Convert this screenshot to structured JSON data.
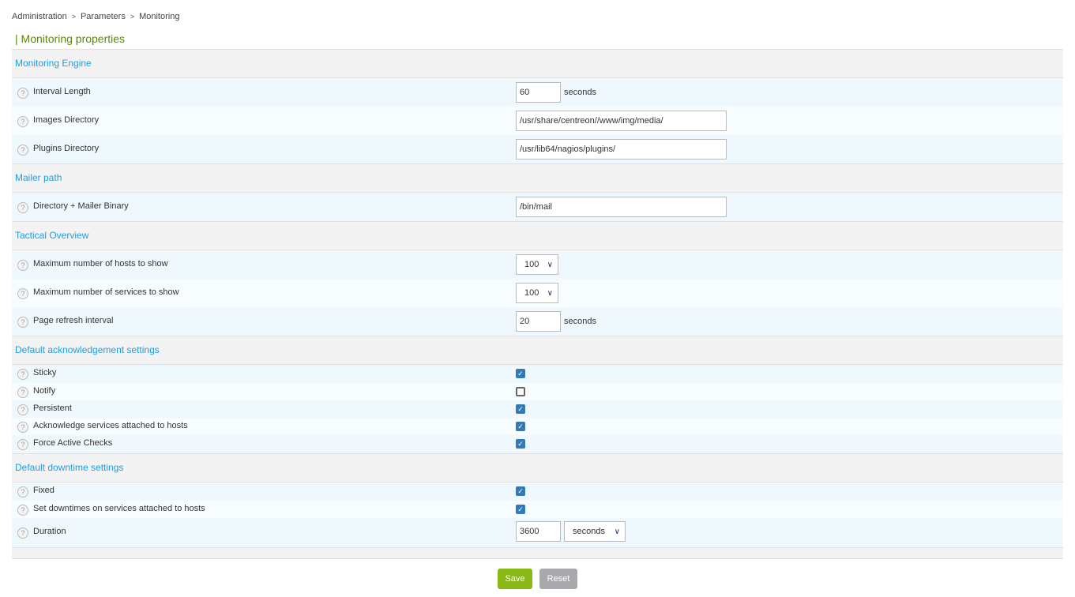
{
  "breadcrumb": [
    "Administration",
    "Parameters",
    "Monitoring"
  ],
  "breadcrumb_separator": ">",
  "page_title": "| Monitoring properties",
  "help_icon": "?",
  "sections": [
    {
      "title": "Monitoring Engine",
      "rows": [
        {
          "label": "Interval Length",
          "type": "text",
          "value": "60",
          "width": "small",
          "unit": "seconds"
        },
        {
          "label": "Images Directory",
          "type": "text",
          "value": "/usr/share/centreon//www/img/media/",
          "width": "wide"
        },
        {
          "label": "Plugins Directory",
          "type": "text",
          "value": "/usr/lib64/nagios/plugins/",
          "width": "wide"
        }
      ]
    },
    {
      "title": "Mailer path",
      "rows": [
        {
          "label": "Directory + Mailer Binary",
          "type": "text",
          "value": "/bin/mail",
          "width": "wide"
        }
      ]
    },
    {
      "title": "Tactical Overview",
      "rows": [
        {
          "label": "Maximum number of hosts to show",
          "type": "select",
          "value": "100"
        },
        {
          "label": "Maximum number of services to show",
          "type": "select",
          "value": "100"
        },
        {
          "label": "Page refresh interval",
          "type": "text",
          "value": "20",
          "width": "small",
          "unit": "seconds"
        }
      ]
    },
    {
      "title": "Default acknowledgement settings",
      "rows": [
        {
          "label": "Sticky",
          "type": "checkbox",
          "checked": true
        },
        {
          "label": "Notify",
          "type": "checkbox",
          "checked": false
        },
        {
          "label": "Persistent",
          "type": "checkbox",
          "checked": true
        },
        {
          "label": "Acknowledge services attached to hosts",
          "type": "checkbox",
          "checked": true
        },
        {
          "label": "Force Active Checks",
          "type": "checkbox",
          "checked": true
        }
      ]
    },
    {
      "title": "Default downtime settings",
      "rows": [
        {
          "label": "Fixed",
          "type": "checkbox",
          "checked": true
        },
        {
          "label": "Set downtimes on services attached to hosts",
          "type": "checkbox",
          "checked": true
        },
        {
          "label": "Duration",
          "type": "text",
          "value": "3600",
          "width": "small",
          "unit_select": "seconds"
        }
      ]
    }
  ],
  "buttons": {
    "save": "Save",
    "reset": "Reset"
  },
  "colors": {
    "accent": "#1e9ee0",
    "title": "#5a8a00",
    "save": "#88b917",
    "reset": "#a7a9ad",
    "checkbox": "#337ab7"
  }
}
